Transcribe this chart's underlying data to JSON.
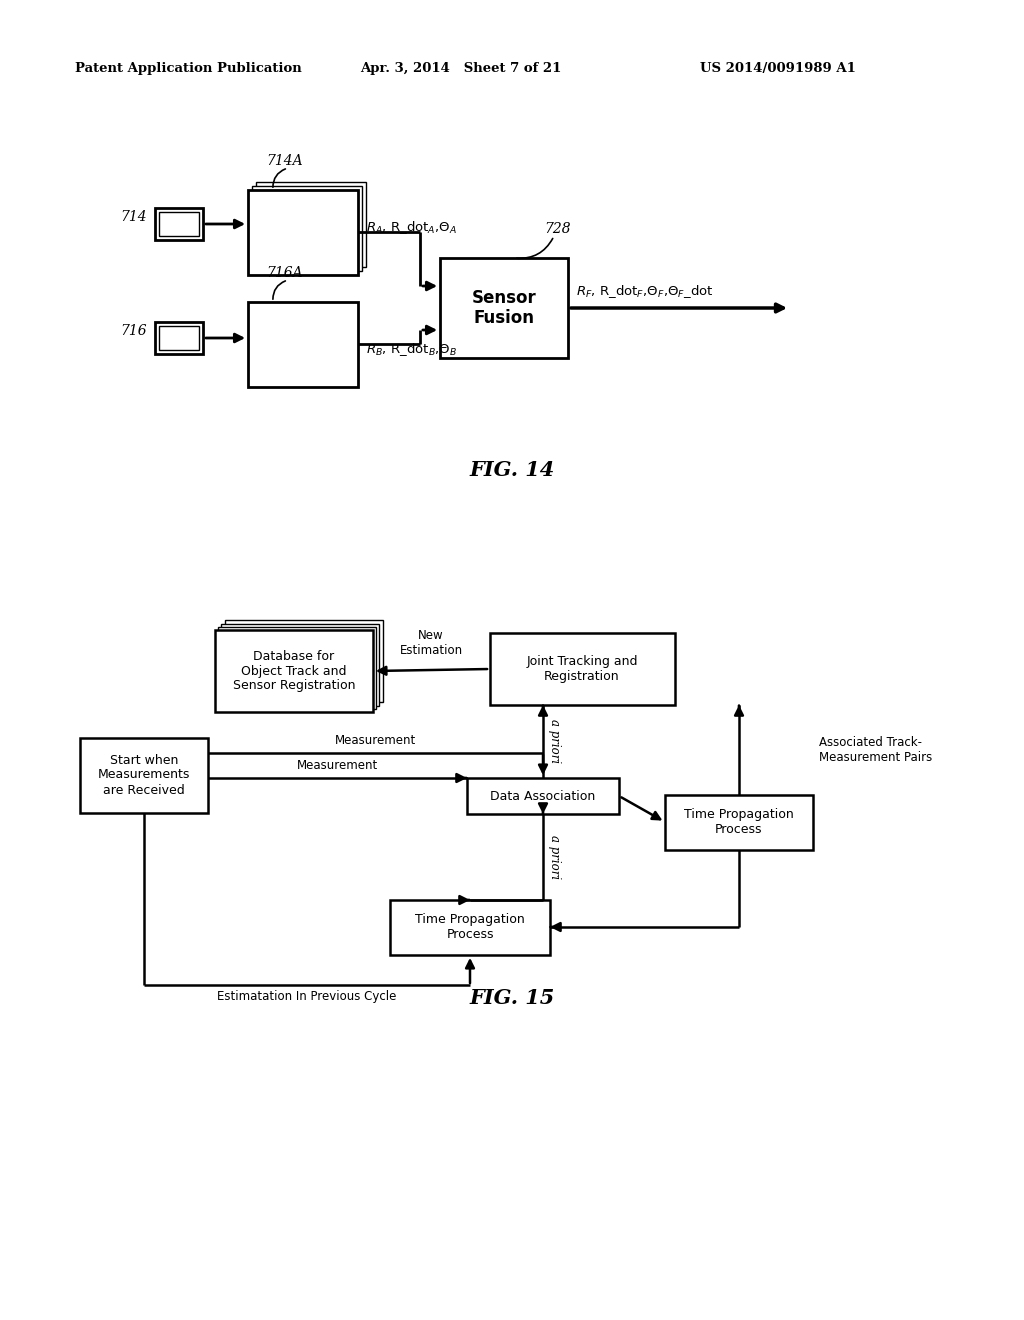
{
  "header_left": "Patent Application Publication",
  "header_center": "Apr. 3, 2014   Sheet 7 of 21",
  "header_right": "US 2014/0091989 A1",
  "fig14_label": "FIG. 14",
  "fig15_label": "FIG. 15",
  "bg_color": "#ffffff",
  "text_color": "#000000",
  "fig14": {
    "sensor_A_label": "714",
    "sensor_A_block_label": "714A",
    "sensor_B_label": "716",
    "sensor_B_block_label": "716A",
    "fusion_label": "728",
    "fusion_text": "Sensor\nFusion",
    "label_A": "R_A, R_dot_A,Θ_A",
    "label_B": "R_B, R_dot_B,Θ_B",
    "label_F": "R_F, R_dot_F,Θ_F,Θ_F_dot"
  },
  "fig15": {
    "db_text": "Database for\nObject Track and\nSensor Registration",
    "joint_text": "Joint Tracking and\nRegistration",
    "start_text": "Start when\nMeasurements\nare Received",
    "data_assoc_text": "Data Association",
    "time_prop_bot_text": "Time Propagation\nProcess",
    "time_prop_right_text": "Time Propagation\nProcess",
    "new_est_label": "New\nEstimation",
    "measurement1_label": "Measurement",
    "measurement2_label": "Measurement",
    "assoc_track_label": "Associated Track-\nMeasurement Pairs",
    "a_priori1_label": "a priori",
    "a_priori2_label": "a priori",
    "est_prev_label": "Estimatation In Previous Cycle"
  }
}
